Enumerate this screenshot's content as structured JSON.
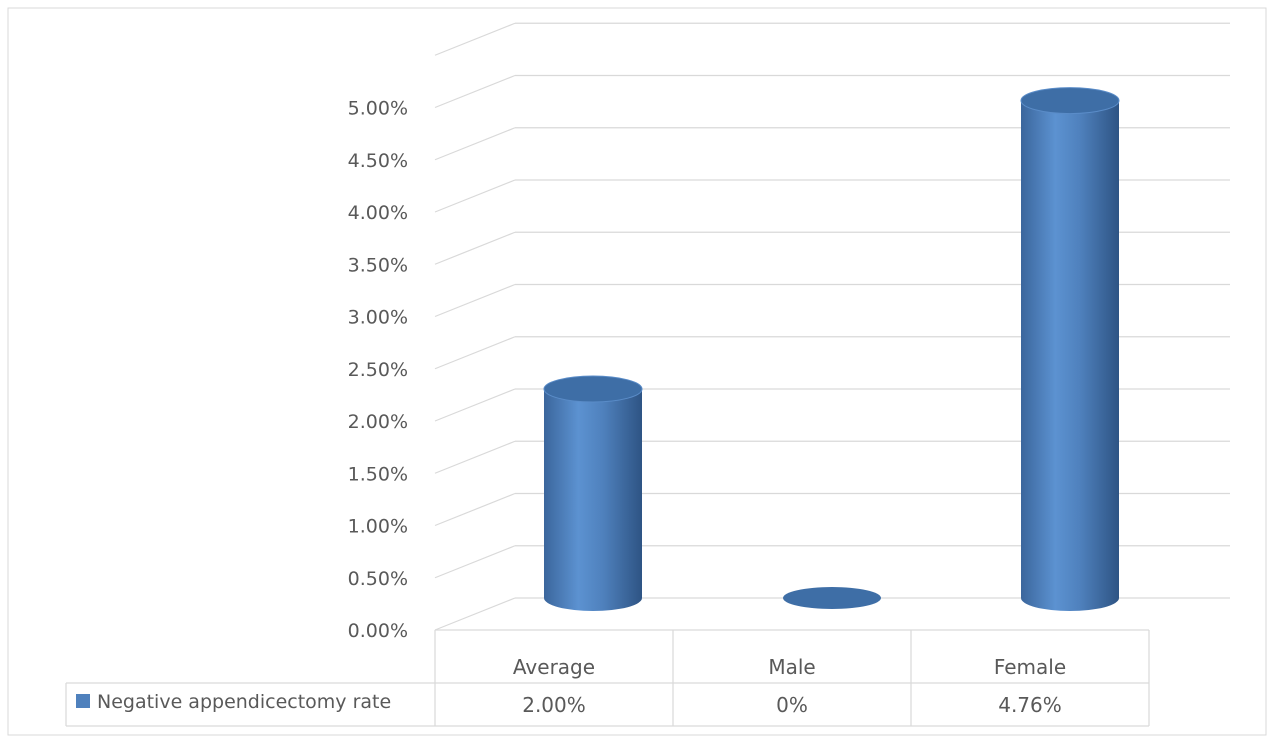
{
  "chart_data": {
    "type": "bar",
    "style": "3d-cylinder",
    "categories": [
      "Average",
      "Male",
      "Female"
    ],
    "series": [
      {
        "name": "Negative appendicectomy rate",
        "values": [
          2.0,
          0,
          4.76
        ],
        "value_labels": [
          "2.00%",
          "0%",
          "4.76%"
        ],
        "color": "#4f81bd"
      }
    ],
    "y_ticks": [
      "0.00%",
      "0.50%",
      "1.00%",
      "1.50%",
      "2.00%",
      "2.50%",
      "3.00%",
      "3.50%",
      "4.00%",
      "4.50%",
      "5.00%"
    ],
    "ylim": [
      0,
      5.5
    ],
    "grid": true,
    "legend": "data-table",
    "colors": {
      "bar": "#4f81bd",
      "grid": "#d9d9d9",
      "text": "#595959",
      "frame": "#d9d9d9"
    }
  }
}
